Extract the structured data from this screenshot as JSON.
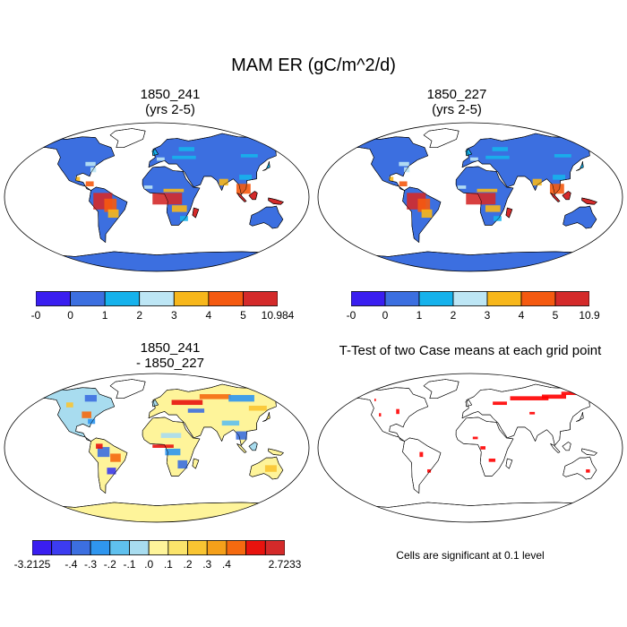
{
  "title": "MAM ER (gC/m^2/d)",
  "panels": [
    {
      "id": "p1",
      "title_lines": [
        "1850_241",
        "(yrs 2-5)"
      ],
      "kind": "field"
    },
    {
      "id": "p2",
      "title_lines": [
        "1850_227",
        "(yrs 2-5)"
      ],
      "kind": "field"
    },
    {
      "id": "p3",
      "title_lines": [
        "1850_241",
        "- 1850_227"
      ],
      "kind": "diff"
    },
    {
      "id": "p4",
      "title_lines": [
        "T-Test of two Case means at each grid point"
      ],
      "kind": "ttest"
    }
  ],
  "colorbars": [
    {
      "id": "cb1",
      "colors": [
        "#3a1ef0",
        "#3c6fe0",
        "#16b2ec",
        "#bde6f5",
        "#f7b71b",
        "#f55a10",
        "#d42a2a"
      ],
      "labels": [
        "-0",
        "0",
        "1",
        "2",
        "3",
        "4",
        "5",
        "10.984"
      ]
    },
    {
      "id": "cb2",
      "colors": [
        "#3a1ef0",
        "#3c6fe0",
        "#16b2ec",
        "#bde6f5",
        "#f7b71b",
        "#f55a10",
        "#d42a2a"
      ],
      "labels": [
        "-0",
        "0",
        "1",
        "2",
        "3",
        "4",
        "5",
        "10.9"
      ]
    },
    {
      "id": "cb3",
      "colors": [
        "#3a1ef0",
        "#3c3cf0",
        "#3c6fe0",
        "#2f96ef",
        "#5fc0ee",
        "#a8dcef",
        "#fef49a",
        "#fbe46b",
        "#f9c532",
        "#f5a01a",
        "#f56a10",
        "#e8130e",
        "#d42a2a"
      ],
      "labels": [
        "-3.2125",
        "-.4",
        "-.3",
        "-.2",
        "-.1",
        ".0",
        ".1",
        ".2",
        ".3",
        ".4",
        "2.7233"
      ],
      "label_boundaries": [
        0,
        2,
        3,
        4,
        5,
        6,
        7,
        8,
        9,
        10,
        13
      ]
    }
  ],
  "significance_note": "Cells are significant at 0.1 level"
}
